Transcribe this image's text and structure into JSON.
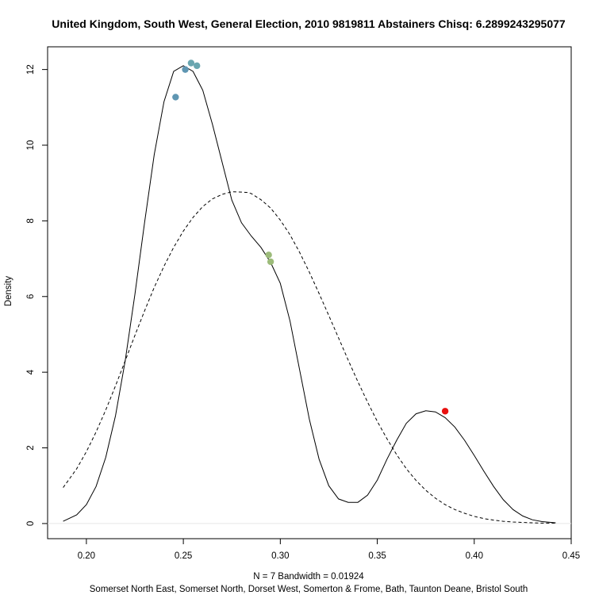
{
  "chart_data": {
    "type": "line",
    "title": "United Kingdom, South West, General Election, 2010 9819811 Abstainers Chisq: 6.2899243295077",
    "xlabel": "N = 7   Bandwidth = 0.01924",
    "subtitle": "Somerset North East, Somerset North, Dorset West, Somerton & Frome, Bath, Taunton Deane, Bristol South",
    "ylabel": "Density",
    "xlim": [
      0.18,
      0.45
    ],
    "ylim": [
      -0.4,
      12.6
    ],
    "x_ticks": [
      "0.20",
      "0.25",
      "0.30",
      "0.35",
      "0.40",
      "0.45"
    ],
    "y_ticks": [
      "0",
      "2",
      "4",
      "6",
      "8",
      "10",
      "12"
    ],
    "series": [
      {
        "style": "solid",
        "x": [
          0.188,
          0.195,
          0.2,
          0.205,
          0.21,
          0.215,
          0.22,
          0.225,
          0.23,
          0.235,
          0.24,
          0.245,
          0.25,
          0.255,
          0.26,
          0.265,
          0.27,
          0.275,
          0.28,
          0.285,
          0.29,
          0.295,
          0.3,
          0.305,
          0.31,
          0.315,
          0.32,
          0.325,
          0.33,
          0.335,
          0.34,
          0.345,
          0.35,
          0.355,
          0.36,
          0.365,
          0.37,
          0.375,
          0.38,
          0.385,
          0.39,
          0.395,
          0.4,
          0.405,
          0.41,
          0.415,
          0.42,
          0.425,
          0.43,
          0.435,
          0.442
        ],
        "y": [
          0.06,
          0.23,
          0.5,
          0.98,
          1.75,
          2.85,
          4.3,
          6.05,
          7.95,
          9.75,
          11.15,
          11.95,
          12.1,
          11.95,
          11.45,
          10.55,
          9.55,
          8.55,
          7.95,
          7.6,
          7.3,
          6.9,
          6.35,
          5.35,
          4.05,
          2.75,
          1.7,
          1.0,
          0.65,
          0.56,
          0.56,
          0.75,
          1.15,
          1.7,
          2.2,
          2.65,
          2.9,
          2.98,
          2.95,
          2.8,
          2.55,
          2.2,
          1.8,
          1.38,
          0.98,
          0.63,
          0.37,
          0.2,
          0.1,
          0.05,
          0.02
        ]
      },
      {
        "style": "dashed",
        "x": [
          0.188,
          0.195,
          0.2,
          0.205,
          0.21,
          0.215,
          0.22,
          0.225,
          0.23,
          0.235,
          0.24,
          0.245,
          0.25,
          0.255,
          0.26,
          0.265,
          0.27,
          0.275,
          0.28,
          0.283,
          0.285,
          0.29,
          0.295,
          0.3,
          0.305,
          0.31,
          0.315,
          0.32,
          0.325,
          0.33,
          0.335,
          0.34,
          0.345,
          0.35,
          0.355,
          0.36,
          0.365,
          0.37,
          0.375,
          0.38,
          0.385,
          0.39,
          0.395,
          0.4,
          0.405,
          0.41,
          0.415,
          0.42,
          0.425,
          0.43,
          0.435,
          0.442
        ],
        "y": [
          0.95,
          1.45,
          1.9,
          2.42,
          3.0,
          3.64,
          4.3,
          4.97,
          5.62,
          6.24,
          6.8,
          7.3,
          7.73,
          8.09,
          8.38,
          8.58,
          8.7,
          8.77,
          8.76,
          8.75,
          8.72,
          8.56,
          8.34,
          8.02,
          7.63,
          7.16,
          6.64,
          6.08,
          5.5,
          4.91,
          4.32,
          3.75,
          3.21,
          2.7,
          2.24,
          1.82,
          1.45,
          1.14,
          0.88,
          0.67,
          0.5,
          0.37,
          0.27,
          0.19,
          0.13,
          0.09,
          0.06,
          0.04,
          0.03,
          0.02,
          0.01,
          0.01
        ]
      }
    ],
    "points": [
      {
        "x": 0.246,
        "y": 11.27,
        "color": "#5f96b2"
      },
      {
        "x": 0.251,
        "y": 12.0,
        "color": "#5f96b2"
      },
      {
        "x": 0.254,
        "y": 12.17,
        "color": "#6aa6b0"
      },
      {
        "x": 0.257,
        "y": 12.1,
        "color": "#6aa6b0"
      },
      {
        "x": 0.294,
        "y": 7.1,
        "color": "#9cbb7a"
      },
      {
        "x": 0.295,
        "y": 6.92,
        "color": "#9cbb7a"
      },
      {
        "x": 0.385,
        "y": 2.97,
        "color": "#e8100f"
      }
    ],
    "grid": false,
    "legend": "none"
  }
}
